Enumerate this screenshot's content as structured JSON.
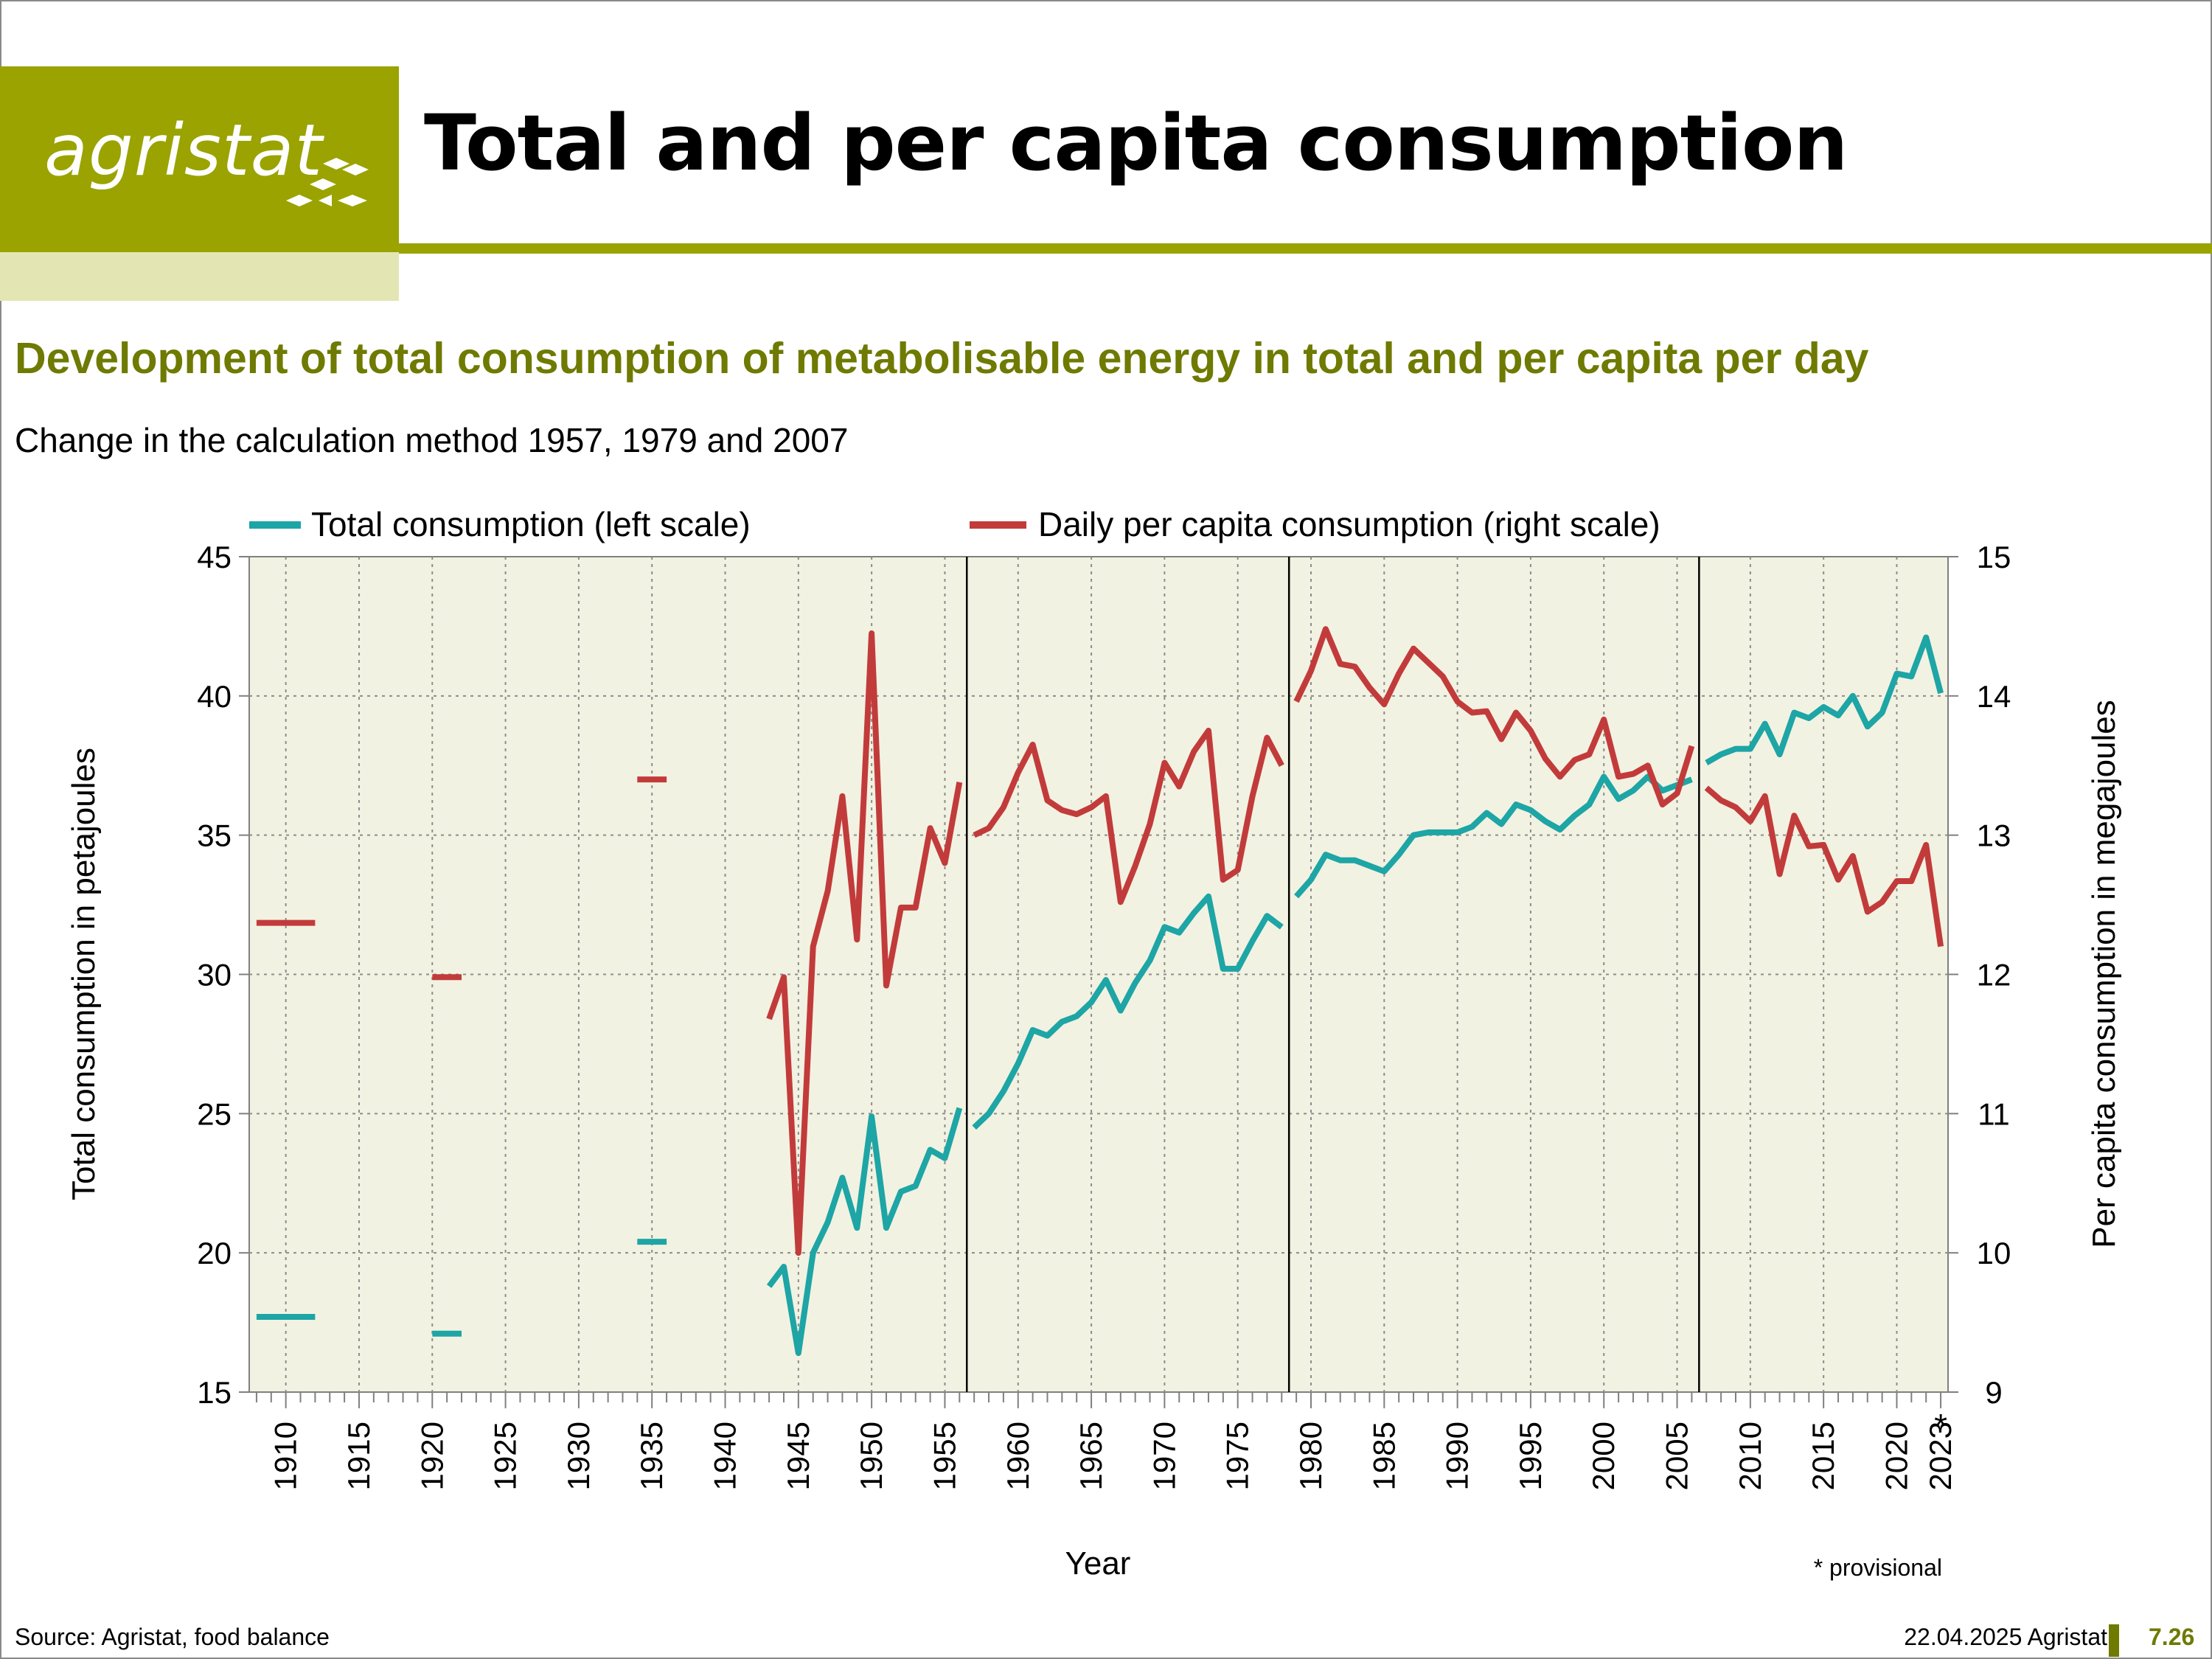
{
  "header": {
    "logo_text": "agristat",
    "title": "Total and per capita consumption"
  },
  "subtitle": "Development of total consumption of metabolisable energy in total and per capita per day",
  "note": "Change in the calculation method 1957, 1979 and 2007",
  "footer": {
    "source": "Source: Agristat, food balance",
    "date": "22.04.2025 Agristat",
    "page": "7.26"
  },
  "colors": {
    "brand": "#9aa300",
    "brand_light": "#e3e6b3",
    "subtitle": "#6e7a00",
    "plot_bg": "#f2f2e2",
    "total": "#1ea5a5",
    "per_capita": "#c23b3b"
  },
  "chart_data": {
    "type": "line",
    "xlabel": "Year",
    "ylabel_left": "Total consumption in petajoules",
    "ylabel_right": "Per capita consumption in megajoules",
    "ylim_left": [
      15,
      45
    ],
    "ylim_right": [
      9,
      15
    ],
    "yticks_left": [
      15,
      20,
      25,
      30,
      35,
      40,
      45
    ],
    "yticks_right": [
      9,
      10,
      11,
      12,
      13,
      14,
      15
    ],
    "xlim": [
      1908,
      2023
    ],
    "xticks": [
      1910,
      1915,
      1920,
      1925,
      1930,
      1935,
      1940,
      1945,
      1950,
      1955,
      1960,
      1965,
      1970,
      1975,
      1980,
      1985,
      1990,
      1995,
      2000,
      2005,
      2010,
      2015,
      2020,
      2023
    ],
    "last_tick_marker": "*",
    "provisional_note": "* provisional",
    "method_breaks": [
      1957,
      1979,
      2007
    ],
    "grid": true,
    "legend_position": "top",
    "series": [
      {
        "name": "Total consumption (left scale)",
        "axis": "left",
        "segments": [
          [
            [
              1908,
              17.7
            ],
            [
              1912,
              17.7
            ]
          ],
          [
            [
              1920,
              17.1
            ],
            [
              1922,
              17.1
            ]
          ],
          [
            [
              1934,
              20.4
            ],
            [
              1936,
              20.4
            ]
          ],
          [
            [
              1943,
              18.8
            ],
            [
              1944,
              19.5
            ],
            [
              1945,
              16.4
            ],
            [
              1946,
              20.0
            ],
            [
              1947,
              21.1
            ],
            [
              1948,
              22.7
            ],
            [
              1949,
              20.9
            ],
            [
              1950,
              24.9
            ],
            [
              1951,
              20.9
            ],
            [
              1952,
              22.2
            ],
            [
              1953,
              22.4
            ],
            [
              1954,
              23.7
            ],
            [
              1955,
              23.4
            ],
            [
              1956,
              25.2
            ]
          ],
          [
            [
              1957,
              24.5
            ],
            [
              1958,
              25.0
            ],
            [
              1959,
              25.8
            ],
            [
              1960,
              26.8
            ],
            [
              1961,
              28.0
            ],
            [
              1962,
              27.8
            ],
            [
              1963,
              28.3
            ],
            [
              1964,
              28.5
            ],
            [
              1965,
              29.0
            ],
            [
              1966,
              29.8
            ],
            [
              1967,
              28.7
            ],
            [
              1968,
              29.7
            ],
            [
              1969,
              30.5
            ],
            [
              1970,
              31.7
            ],
            [
              1971,
              31.5
            ],
            [
              1972,
              32.2
            ],
            [
              1973,
              32.8
            ],
            [
              1974,
              30.2
            ],
            [
              1975,
              30.2
            ],
            [
              1976,
              31.2
            ],
            [
              1977,
              32.1
            ],
            [
              1978,
              31.7
            ]
          ],
          [
            [
              1979,
              32.8
            ],
            [
              1980,
              33.4
            ],
            [
              1981,
              34.3
            ],
            [
              1982,
              34.1
            ],
            [
              1983,
              34.1
            ],
            [
              1984,
              33.9
            ],
            [
              1985,
              33.7
            ],
            [
              1986,
              34.3
            ],
            [
              1987,
              35.0
            ],
            [
              1988,
              35.1
            ],
            [
              1989,
              35.1
            ],
            [
              1990,
              35.1
            ],
            [
              1991,
              35.3
            ],
            [
              1992,
              35.8
            ],
            [
              1993,
              35.4
            ],
            [
              1994,
              36.1
            ],
            [
              1995,
              35.9
            ],
            [
              1996,
              35.5
            ],
            [
              1997,
              35.2
            ],
            [
              1998,
              35.7
            ],
            [
              1999,
              36.1
            ],
            [
              2000,
              37.1
            ],
            [
              2001,
              36.3
            ],
            [
              2002,
              36.6
            ],
            [
              2003,
              37.1
            ],
            [
              2004,
              36.6
            ],
            [
              2005,
              36.8
            ],
            [
              2006,
              37.0
            ]
          ],
          [
            [
              2007,
              37.6
            ],
            [
              2008,
              37.9
            ],
            [
              2009,
              38.1
            ],
            [
              2010,
              38.1
            ],
            [
              2011,
              39.0
            ],
            [
              2012,
              37.9
            ],
            [
              2013,
              39.4
            ],
            [
              2014,
              39.2
            ],
            [
              2015,
              39.6
            ],
            [
              2016,
              39.3
            ],
            [
              2017,
              40.0
            ],
            [
              2018,
              38.9
            ],
            [
              2019,
              39.4
            ],
            [
              2020,
              40.8
            ],
            [
              2021,
              40.7
            ],
            [
              2022,
              42.1
            ],
            [
              2023,
              40.1
            ]
          ]
        ]
      },
      {
        "name": "Daily per capita consumption (right scale)",
        "axis": "right",
        "segments": [
          [
            [
              1908,
              12.37
            ],
            [
              1912,
              12.37
            ]
          ],
          [
            [
              1920,
              11.98
            ],
            [
              1922,
              11.98
            ]
          ],
          [
            [
              1934,
              13.4
            ],
            [
              1936,
              13.4
            ]
          ],
          [
            [
              1943,
              11.68
            ],
            [
              1944,
              11.98
            ],
            [
              1945,
              10.0
            ],
            [
              1946,
              12.2
            ],
            [
              1947,
              12.6
            ],
            [
              1948,
              13.28
            ],
            [
              1949,
              12.25
            ],
            [
              1950,
              14.45
            ],
            [
              1951,
              11.92
            ],
            [
              1952,
              12.48
            ],
            [
              1953,
              12.48
            ],
            [
              1954,
              13.05
            ],
            [
              1955,
              12.8
            ],
            [
              1956,
              13.38
            ]
          ],
          [
            [
              1957,
              13.0
            ],
            [
              1958,
              13.05
            ],
            [
              1959,
              13.2
            ],
            [
              1960,
              13.45
            ],
            [
              1961,
              13.65
            ],
            [
              1962,
              13.25
            ],
            [
              1963,
              13.18
            ],
            [
              1964,
              13.15
            ],
            [
              1965,
              13.2
            ],
            [
              1966,
              13.28
            ],
            [
              1967,
              12.52
            ],
            [
              1968,
              12.78
            ],
            [
              1969,
              13.08
            ],
            [
              1970,
              13.52
            ],
            [
              1971,
              13.35
            ],
            [
              1972,
              13.6
            ],
            [
              1973,
              13.75
            ],
            [
              1974,
              12.68
            ],
            [
              1975,
              12.75
            ],
            [
              1976,
              13.28
            ],
            [
              1977,
              13.7
            ],
            [
              1978,
              13.5
            ]
          ],
          [
            [
              1979,
              13.96
            ],
            [
              1980,
              14.18
            ],
            [
              1981,
              14.48
            ],
            [
              1982,
              14.23
            ],
            [
              1983,
              14.21
            ],
            [
              1984,
              14.06
            ],
            [
              1985,
              13.94
            ],
            [
              1986,
              14.16
            ],
            [
              1987,
              14.34
            ],
            [
              1988,
              14.24
            ],
            [
              1989,
              14.14
            ],
            [
              1990,
              13.96
            ],
            [
              1991,
              13.88
            ],
            [
              1992,
              13.89
            ],
            [
              1993,
              13.69
            ],
            [
              1994,
              13.88
            ],
            [
              1995,
              13.75
            ],
            [
              1996,
              13.55
            ],
            [
              1997,
              13.42
            ],
            [
              1998,
              13.54
            ],
            [
              1999,
              13.58
            ],
            [
              2000,
              13.83
            ],
            [
              2001,
              13.42
            ],
            [
              2002,
              13.44
            ],
            [
              2003,
              13.5
            ],
            [
              2004,
              13.22
            ],
            [
              2005,
              13.3
            ],
            [
              2006,
              13.64
            ]
          ],
          [
            [
              2007,
              13.34
            ],
            [
              2008,
              13.25
            ],
            [
              2009,
              13.2
            ],
            [
              2010,
              13.1
            ],
            [
              2011,
              13.28
            ],
            [
              2012,
              12.72
            ],
            [
              2013,
              13.14
            ],
            [
              2014,
              12.92
            ],
            [
              2015,
              12.93
            ],
            [
              2016,
              12.68
            ],
            [
              2017,
              12.85
            ],
            [
              2018,
              12.45
            ],
            [
              2019,
              12.52
            ],
            [
              2020,
              12.67
            ],
            [
              2021,
              12.67
            ],
            [
              2022,
              12.93
            ],
            [
              2023,
              12.2
            ]
          ]
        ]
      }
    ]
  }
}
